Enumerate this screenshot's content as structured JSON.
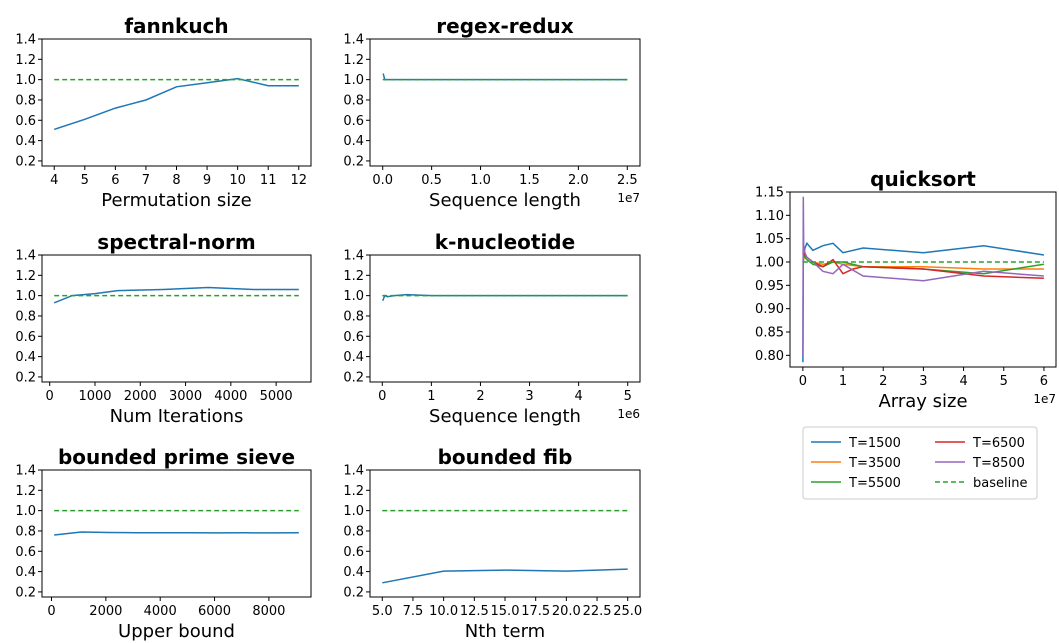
{
  "chart_data": [
    {
      "type": "line",
      "title": "fannkuch",
      "xlabel": "Permutation size",
      "xlim": [
        3.6,
        12.4
      ],
      "ylim": [
        0.15,
        1.4
      ],
      "xticks": [
        4,
        5,
        6,
        7,
        8,
        9,
        10,
        11,
        12
      ],
      "xtick_labels": [
        "4",
        "5",
        "6",
        "7",
        "8",
        "9",
        "10",
        "11",
        "12"
      ],
      "yticks": [
        0.2,
        0.4,
        0.6,
        0.8,
        1.0,
        1.2,
        1.4
      ],
      "ytick_labels": [
        "0.2",
        "0.4",
        "0.6",
        "0.8",
        "1.0",
        "1.2",
        "1.4"
      ],
      "x_offset": "",
      "series": [
        {
          "color": "#1f77b4",
          "x": [
            4,
            5,
            6,
            7,
            8,
            9,
            10,
            11,
            12
          ],
          "y": [
            0.51,
            0.61,
            0.72,
            0.8,
            0.93,
            0.97,
            1.01,
            0.94,
            0.94
          ]
        },
        {
          "color": "#2ca02c",
          "dashed": true,
          "x": [
            4,
            12
          ],
          "y": [
            1.0,
            1.0
          ]
        }
      ]
    },
    {
      "type": "line",
      "title": "regex-redux",
      "xlabel": "Sequence length",
      "xlim": [
        -0.13,
        2.63
      ],
      "ylim": [
        0.15,
        1.4
      ],
      "xticks": [
        0.0,
        0.5,
        1.0,
        1.5,
        2.0,
        2.5
      ],
      "xtick_labels": [
        "0.0",
        "0.5",
        "1.0",
        "1.5",
        "2.0",
        "2.5"
      ],
      "yticks": [
        0.2,
        0.4,
        0.6,
        0.8,
        1.0,
        1.2,
        1.4
      ],
      "ytick_labels": [
        "0.2",
        "0.4",
        "0.6",
        "0.8",
        "1.0",
        "1.2",
        "1.4"
      ],
      "x_offset": "1e7",
      "series": [
        {
          "color": "#1f77b4",
          "x": [
            0.005,
            0.02,
            0.05,
            0.1,
            0.5,
            1.0,
            1.5,
            2.0,
            2.5
          ],
          "y": [
            1.06,
            1.0,
            1.0,
            1.0,
            1.0,
            1.0,
            1.0,
            1.0,
            1.0
          ]
        },
        {
          "color": "#2ca02c",
          "dashed": true,
          "x": [
            0.0,
            2.5
          ],
          "y": [
            1.0,
            1.0
          ]
        }
      ]
    },
    {
      "type": "line",
      "title": "spectral-norm",
      "xlabel": "Num Iterations",
      "xlim": [
        -170,
        5770
      ],
      "ylim": [
        0.15,
        1.4
      ],
      "xticks": [
        0,
        1000,
        2000,
        3000,
        4000,
        5000
      ],
      "xtick_labels": [
        "0",
        "1000",
        "2000",
        "3000",
        "4000",
        "5000"
      ],
      "yticks": [
        0.2,
        0.4,
        0.6,
        0.8,
        1.0,
        1.2,
        1.4
      ],
      "ytick_labels": [
        "0.2",
        "0.4",
        "0.6",
        "0.8",
        "1.0",
        "1.2",
        "1.4"
      ],
      "x_offset": "",
      "series": [
        {
          "color": "#1f77b4",
          "x": [
            100,
            500,
            1000,
            1500,
            2500,
            3500,
            4500,
            5500
          ],
          "y": [
            0.93,
            1.0,
            1.02,
            1.05,
            1.06,
            1.08,
            1.06,
            1.06
          ]
        },
        {
          "color": "#2ca02c",
          "dashed": true,
          "x": [
            100,
            5500
          ],
          "y": [
            1.0,
            1.0
          ]
        }
      ]
    },
    {
      "type": "line",
      "title": "k-nucleotide",
      "xlabel": "Sequence length",
      "xlim": [
        -0.25,
        5.25
      ],
      "ylim": [
        0.15,
        1.4
      ],
      "xticks": [
        0,
        1,
        2,
        3,
        4,
        5
      ],
      "xtick_labels": [
        "0",
        "1",
        "2",
        "3",
        "4",
        "5"
      ],
      "yticks": [
        0.2,
        0.4,
        0.6,
        0.8,
        1.0,
        1.2,
        1.4
      ],
      "ytick_labels": [
        "0.2",
        "0.4",
        "0.6",
        "0.8",
        "1.0",
        "1.2",
        "1.4"
      ],
      "x_offset": "1e6",
      "series": [
        {
          "color": "#1f77b4",
          "x": [
            0.01,
            0.05,
            0.1,
            0.25,
            0.5,
            1.0,
            1.5,
            2.0,
            2.5,
            3.0,
            4.0,
            5.0
          ],
          "y": [
            0.95,
            1.0,
            0.99,
            1.0,
            1.01,
            1.0,
            1.0,
            1.0,
            1.0,
            1.0,
            1.0,
            1.0
          ]
        },
        {
          "color": "#2ca02c",
          "dashed": true,
          "x": [
            0.0,
            5.0
          ],
          "y": [
            1.0,
            1.0
          ]
        }
      ]
    },
    {
      "type": "line",
      "title": "bounded prime sieve",
      "xlabel": "Upper bound",
      "xlim": [
        -350,
        9550
      ],
      "ylim": [
        0.15,
        1.4
      ],
      "xticks": [
        0,
        2000,
        4000,
        6000,
        8000
      ],
      "xtick_labels": [
        "0",
        "2000",
        "4000",
        "6000",
        "8000"
      ],
      "yticks": [
        0.2,
        0.4,
        0.6,
        0.8,
        1.0,
        1.2,
        1.4
      ],
      "ytick_labels": [
        "0.2",
        "0.4",
        "0.6",
        "0.8",
        "1.0",
        "1.2",
        "1.4"
      ],
      "x_offset": "",
      "series": [
        {
          "color": "#1f77b4",
          "x": [
            100,
            1100,
            2100,
            3100,
            4100,
            5100,
            6100,
            7100,
            8100,
            9100
          ],
          "y": [
            0.76,
            0.79,
            0.785,
            0.783,
            0.782,
            0.782,
            0.781,
            0.782,
            0.781,
            0.782
          ]
        },
        {
          "color": "#2ca02c",
          "dashed": true,
          "x": [
            100,
            9100
          ],
          "y": [
            1.0,
            1.0
          ]
        }
      ]
    },
    {
      "type": "line",
      "title": "bounded fib",
      "xlabel": "Nth term",
      "xlim": [
        4.0,
        26.0
      ],
      "ylim": [
        0.15,
        1.4
      ],
      "xticks": [
        5.0,
        7.5,
        10.0,
        12.5,
        15.0,
        17.5,
        20.0,
        22.5,
        25.0
      ],
      "xtick_labels": [
        "5.0",
        "7.5",
        "10.0",
        "12.5",
        "15.0",
        "17.5",
        "20.0",
        "22.5",
        "25.0"
      ],
      "yticks": [
        0.2,
        0.4,
        0.6,
        0.8,
        1.0,
        1.2,
        1.4
      ],
      "ytick_labels": [
        "0.2",
        "0.4",
        "0.6",
        "0.8",
        "1.0",
        "1.2",
        "1.4"
      ],
      "x_offset": "",
      "series": [
        {
          "color": "#1f77b4",
          "x": [
            5,
            10,
            15,
            20,
            25
          ],
          "y": [
            0.29,
            0.405,
            0.415,
            0.405,
            0.425
          ]
        },
        {
          "color": "#2ca02c",
          "dashed": true,
          "x": [
            5,
            25
          ],
          "y": [
            1.0,
            1.0
          ]
        }
      ]
    },
    {
      "type": "line",
      "title": "quicksort",
      "xlabel": "Array size",
      "xlim": [
        -0.32,
        6.3
      ],
      "ylim": [
        0.775,
        1.15
      ],
      "xticks": [
        0,
        1,
        2,
        3,
        4,
        5,
        6
      ],
      "xtick_labels": [
        "0",
        "1",
        "2",
        "3",
        "4",
        "5",
        "6"
      ],
      "yticks": [
        0.8,
        0.85,
        0.9,
        0.95,
        1.0,
        1.05,
        1.1,
        1.15
      ],
      "ytick_labels": [
        "0.80",
        "0.85",
        "0.90",
        "0.95",
        "1.00",
        "1.05",
        "1.10",
        "1.15"
      ],
      "x_offset": "1e7",
      "legend": "bottom",
      "series": [
        {
          "name": "T=1500",
          "color": "#1f77b4",
          "x": [
            0.0,
            0.01,
            0.05,
            0.1,
            0.15,
            0.25,
            0.5,
            0.75,
            1.0,
            1.5,
            3.0,
            4.5,
            6.0
          ],
          "y": [
            0.785,
            1.0,
            1.03,
            1.04,
            1.035,
            1.025,
            1.035,
            1.04,
            1.02,
            1.03,
            1.02,
            1.035,
            1.015
          ]
        },
        {
          "name": "T=3500",
          "color": "#ff7f0e",
          "x": [
            0.0,
            0.05,
            0.1,
            0.25,
            0.5,
            0.75,
            1.0,
            1.5,
            3.0,
            4.5,
            6.0
          ],
          "y": [
            1.0,
            1.015,
            1.01,
            1.0,
            0.995,
            1.0,
            0.995,
            0.99,
            0.99,
            0.985,
            0.985
          ]
        },
        {
          "name": "T=5500",
          "color": "#2ca02c",
          "x": [
            0.0,
            0.05,
            0.1,
            0.25,
            0.5,
            0.75,
            1.0,
            1.5,
            3.0,
            4.5,
            6.0
          ],
          "y": [
            1.02,
            1.01,
            1.005,
            0.995,
            0.99,
            1.0,
            1.0,
            0.99,
            0.985,
            0.975,
            0.995
          ]
        },
        {
          "name": "T=6500",
          "color": "#d62728",
          "x": [
            0.0,
            0.05,
            0.1,
            0.25,
            0.5,
            0.75,
            1.0,
            1.25,
            1.5,
            3.0,
            4.5,
            6.0
          ],
          "y": [
            1.02,
            1.015,
            1.01,
            1.0,
            0.99,
            1.005,
            0.975,
            0.985,
            0.99,
            0.985,
            0.97,
            0.965
          ]
        },
        {
          "name": "T=8500",
          "color": "#9467bd",
          "x": [
            0.0,
            0.01,
            0.02,
            0.05,
            0.1,
            0.25,
            0.5,
            0.75,
            1.0,
            1.5,
            3.0,
            4.5,
            6.0
          ],
          "y": [
            0.8,
            1.14,
            1.03,
            1.02,
            1.01,
            1.0,
            0.98,
            0.975,
            0.995,
            0.97,
            0.96,
            0.98,
            0.97
          ]
        },
        {
          "name": "baseline",
          "color": "#2ca02c",
          "dashed": true,
          "x": [
            0.0,
            6.0
          ],
          "y": [
            1.0,
            1.0
          ]
        }
      ]
    }
  ]
}
